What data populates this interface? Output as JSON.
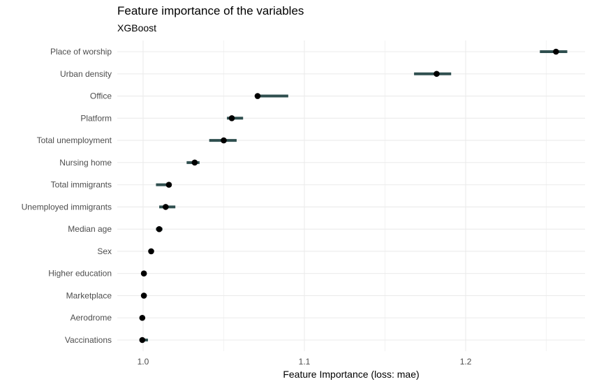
{
  "chart_data": {
    "type": "scatter",
    "title": "Feature importance of the variables",
    "subtitle": "XGBoost",
    "xlabel": "Feature Importance (loss: mae)",
    "ylabel": "",
    "xlim": [
      0.984,
      1.274
    ],
    "x_ticks": [
      "1.0",
      "1.1",
      "1.2"
    ],
    "grid": true,
    "legend": "none",
    "colors": {
      "point": "#000000",
      "interval": "#2f4f4f",
      "grid": "#ebebeb"
    },
    "points": [
      {
        "label": "Place of worship",
        "value": 1.256,
        "low": 1.246,
        "high": 1.263
      },
      {
        "label": "Urban density",
        "value": 1.182,
        "low": 1.168,
        "high": 1.191
      },
      {
        "label": "Office",
        "value": 1.071,
        "low": 1.071,
        "high": 1.09
      },
      {
        "label": "Platform",
        "value": 1.055,
        "low": 1.052,
        "high": 1.062
      },
      {
        "label": "Total unemployment",
        "value": 1.05,
        "low": 1.041,
        "high": 1.058
      },
      {
        "label": "Nursing home",
        "value": 1.032,
        "low": 1.027,
        "high": 1.035
      },
      {
        "label": "Total immigrants",
        "value": 1.016,
        "low": 1.008,
        "high": 1.017
      },
      {
        "label": "Unemployed immigrants",
        "value": 1.014,
        "low": 1.01,
        "high": 1.02
      },
      {
        "label": "Median age",
        "value": 1.01,
        "low": 1.008,
        "high": 1.012
      },
      {
        "label": "Sex",
        "value": 1.005,
        "low": 1.004,
        "high": 1.006
      },
      {
        "label": "Higher education",
        "value": 1.0005,
        "low": 1.0,
        "high": 1.001
      },
      {
        "label": "Marketplace",
        "value": 1.0005,
        "low": 1.0,
        "high": 1.001
      },
      {
        "label": "Aerodrome",
        "value": 0.9995,
        "low": 0.999,
        "high": 1.0
      },
      {
        "label": "Vaccinations",
        "value": 0.9995,
        "low": 0.998,
        "high": 1.003
      }
    ]
  }
}
